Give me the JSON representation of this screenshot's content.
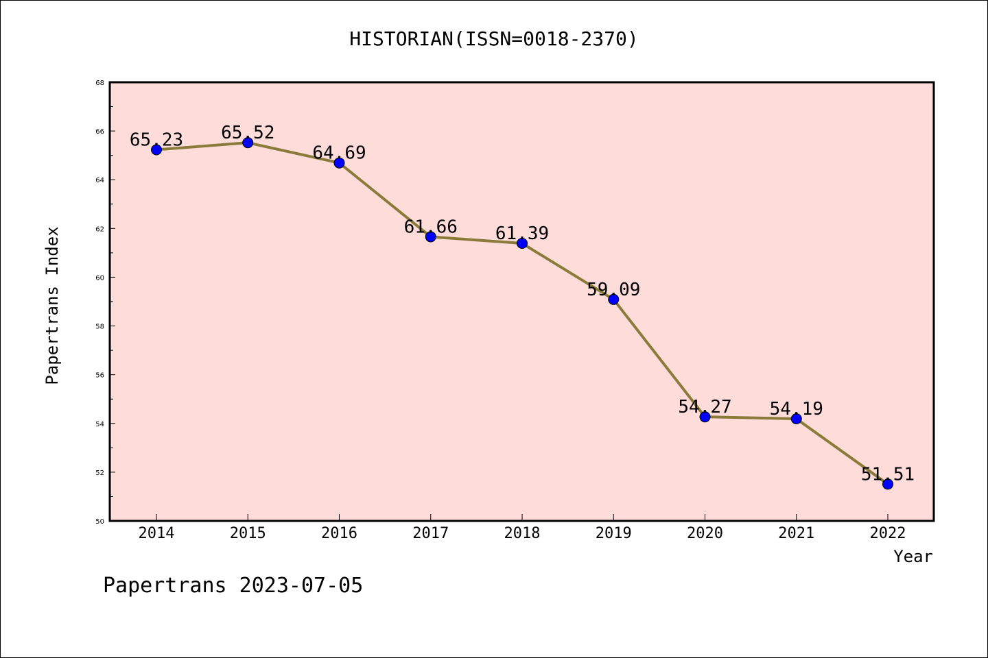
{
  "chart_data": {
    "type": "line",
    "title": "HISTORIAN(ISSN=0018-2370)",
    "xlabel": "Year",
    "ylabel": "Papertrans Index",
    "categories": [
      "2014",
      "2015",
      "2016",
      "2017",
      "2018",
      "2019",
      "2020",
      "2021",
      "2022"
    ],
    "series": [
      {
        "values": [
          65.23,
          65.52,
          64.69,
          61.66,
          61.39,
          59.09,
          54.27,
          54.19,
          51.51
        ],
        "data_labels": [
          "65.23",
          "65.52",
          "64.69",
          "61.66",
          "61.39",
          "59.09",
          "54.27",
          "54.19",
          "51.51"
        ],
        "line_color": "#8B7B3A",
        "marker_color": "#0000FF"
      }
    ],
    "ylim": [
      50,
      68
    ],
    "yticks": [
      "50",
      "52",
      "54",
      "56",
      "58",
      "60",
      "62",
      "64",
      "66",
      "68"
    ],
    "plot_background": "#FDDCDA",
    "grid": false,
    "legend": "none"
  },
  "footer": {
    "text": "Papertrans 2023-07-05"
  }
}
